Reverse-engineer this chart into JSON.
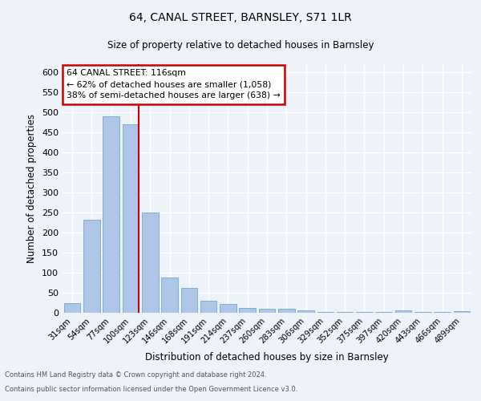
{
  "title_line1": "64, CANAL STREET, BARNSLEY, S71 1LR",
  "title_line2": "Size of property relative to detached houses in Barnsley",
  "xlabel": "Distribution of detached houses by size in Barnsley",
  "ylabel": "Number of detached properties",
  "categories": [
    "31sqm",
    "54sqm",
    "77sqm",
    "100sqm",
    "123sqm",
    "146sqm",
    "168sqm",
    "191sqm",
    "214sqm",
    "237sqm",
    "260sqm",
    "283sqm",
    "306sqm",
    "329sqm",
    "352sqm",
    "375sqm",
    "397sqm",
    "420sqm",
    "443sqm",
    "466sqm",
    "489sqm"
  ],
  "values": [
    25,
    233,
    490,
    470,
    250,
    88,
    63,
    30,
    23,
    13,
    11,
    11,
    7,
    2,
    2,
    2,
    2,
    7,
    2,
    2,
    5
  ],
  "bar_color": "#aec6e8",
  "bar_edge_color": "#7aafd4",
  "annotation_line_label": "64 CANAL STREET: 116sqm",
  "annotation_text1": "← 62% of detached houses are smaller (1,058)",
  "annotation_text2": "38% of semi-detached houses are larger (638) →",
  "annotation_box_color": "#ffffff",
  "annotation_box_edge_color": "#cc0000",
  "red_line_color": "#cc0000",
  "ylim": [
    0,
    620
  ],
  "yticks": [
    0,
    50,
    100,
    150,
    200,
    250,
    300,
    350,
    400,
    450,
    500,
    550,
    600
  ],
  "footer_line1": "Contains HM Land Registry data © Crown copyright and database right 2024.",
  "footer_line2": "Contains public sector information licensed under the Open Government Licence v3.0.",
  "background_color": "#eef2f9",
  "grid_color": "#ffffff"
}
